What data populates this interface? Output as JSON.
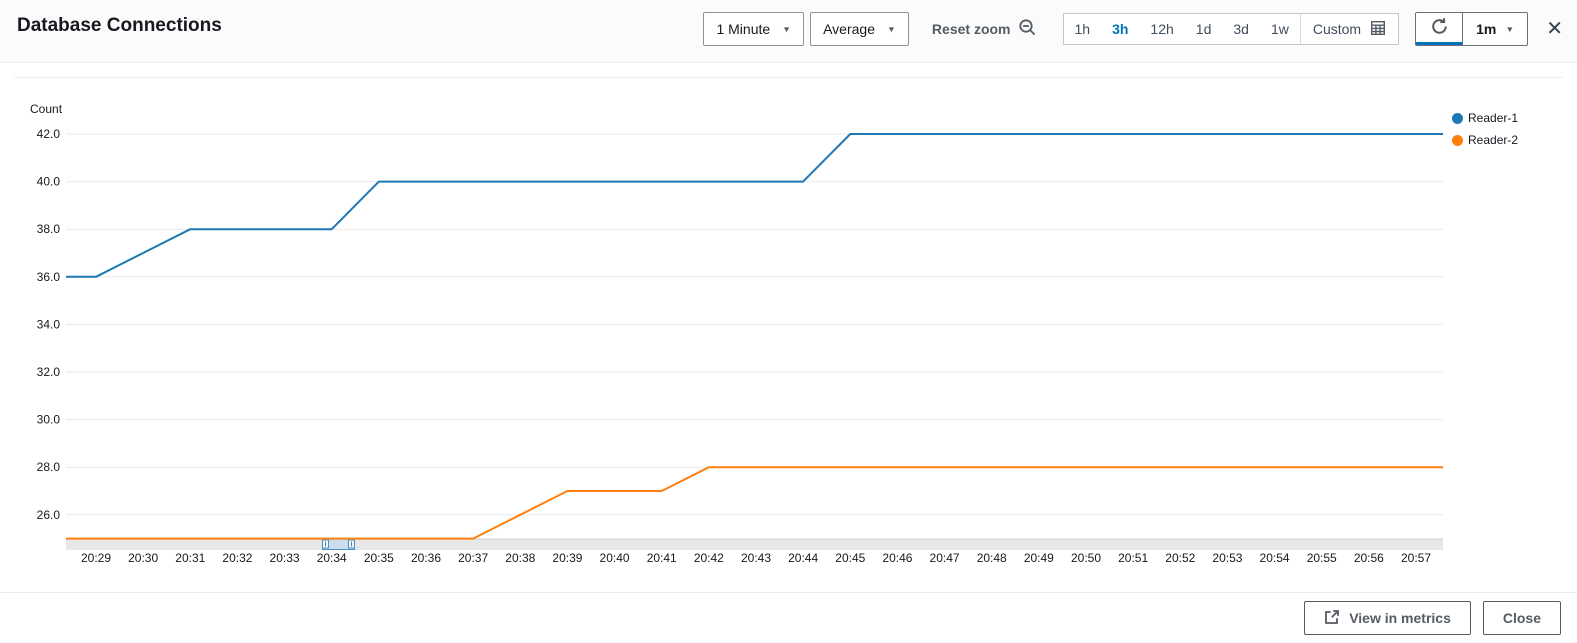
{
  "header": {
    "title": "Database Connections",
    "period_dropdown_value": "1 Minute",
    "statistic_dropdown_value": "Average",
    "reset_zoom_label": "Reset zoom",
    "ranges": [
      "1h",
      "3h",
      "12h",
      "1d",
      "3d",
      "1w"
    ],
    "active_range": "3h",
    "custom_label": "Custom",
    "refresh_interval_value": "1m"
  },
  "icons": {
    "caret": "▼",
    "close": "✕",
    "zoom_out": "magnifier-minus-icon",
    "refresh": "circular-arrow-icon",
    "calendar": "calendar-grid-icon",
    "external_link": "box-arrow-icon"
  },
  "colors": {
    "accent_blue": "#0073bb",
    "series_blue": "#1f77b4",
    "series_orange": "#ff7f0e",
    "button_gray": "#545b64"
  },
  "footer": {
    "view_in_metrics_label": "View in metrics",
    "close_label": "Close"
  },
  "chart_data": {
    "type": "line",
    "title": "Database Connections",
    "ylabel": "Count",
    "xlabel": "",
    "grid": "horizontal-only",
    "legend_position": "right",
    "ylim": [
      24.5,
      42.7
    ],
    "yticks": [
      42.0,
      40.0,
      38.0,
      36.0,
      34.0,
      32.0,
      30.0,
      28.0,
      26.0
    ],
    "x": [
      "20:29",
      "20:30",
      "20:31",
      "20:32",
      "20:33",
      "20:34",
      "20:35",
      "20:36",
      "20:37",
      "20:38",
      "20:39",
      "20:40",
      "20:41",
      "20:42",
      "20:43",
      "20:44",
      "20:45",
      "20:46",
      "20:47",
      "20:48",
      "20:49",
      "20:50",
      "20:51",
      "20:52",
      "20:53",
      "20:54",
      "20:55",
      "20:56",
      "20:57"
    ],
    "series": [
      {
        "name": "Reader-1",
        "color": "#1f77b4",
        "values": [
          36,
          37,
          38,
          38,
          38,
          38,
          40,
          40,
          40,
          40,
          40,
          40,
          40,
          40,
          40,
          40,
          42,
          42,
          42,
          42,
          42,
          42,
          42,
          42,
          42,
          42,
          42,
          42,
          42
        ]
      },
      {
        "name": "Reader-2",
        "color": "#ff7f0e",
        "values": [
          25,
          25,
          25,
          25,
          25,
          25,
          25,
          25,
          25,
          26,
          27,
          27,
          27,
          28,
          28,
          28,
          28,
          28,
          28,
          28,
          28,
          28,
          28,
          28,
          28,
          28,
          28,
          28,
          28
        ]
      }
    ]
  }
}
